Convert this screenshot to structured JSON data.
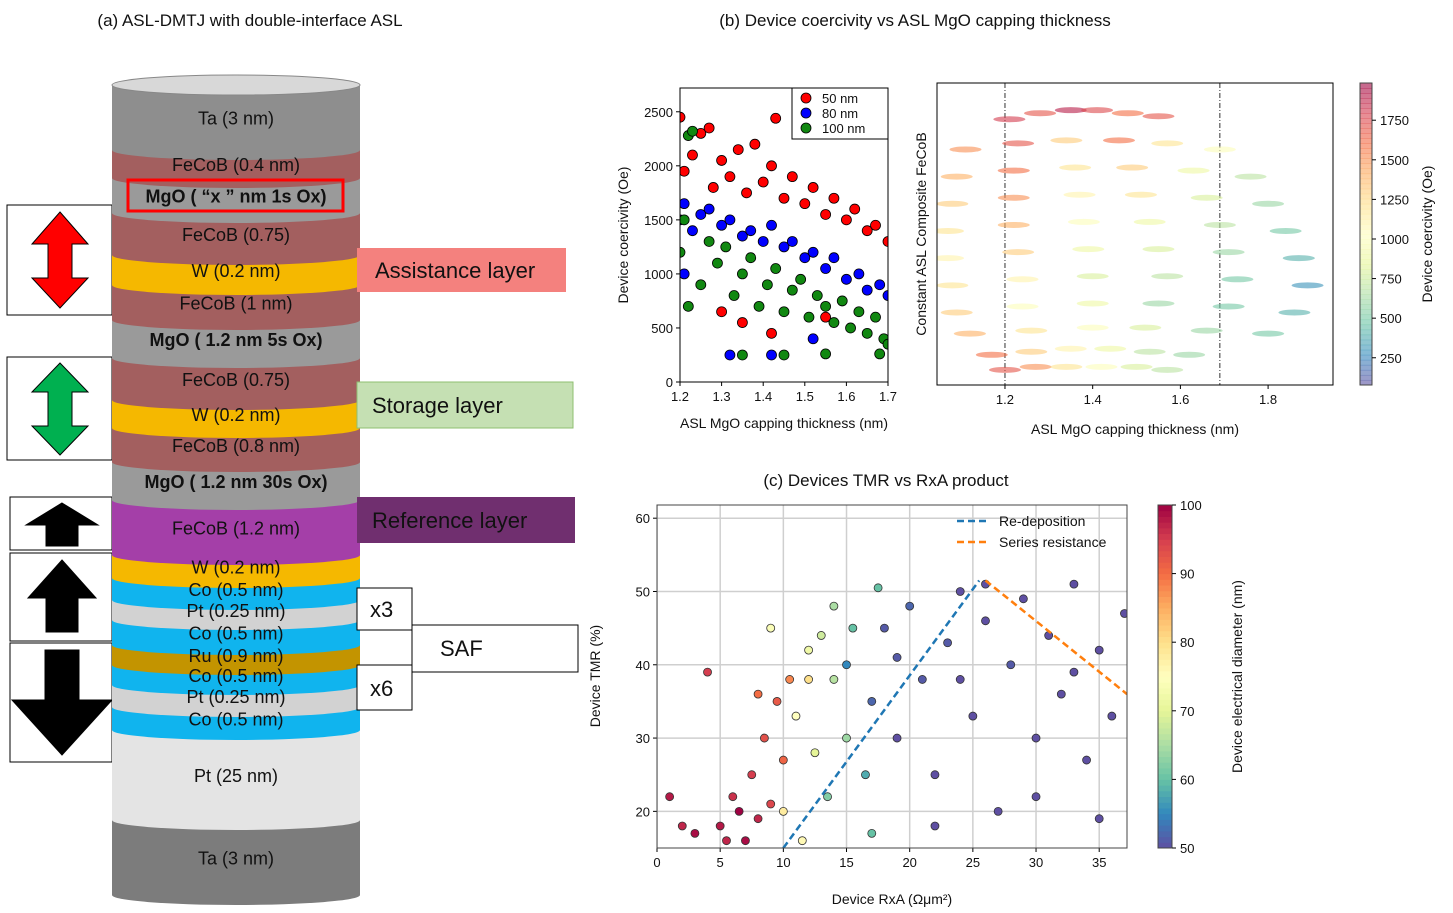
{
  "diagram": {
    "title": "(a) ASL-DMTJ with double-interface ASL",
    "layers": [
      {
        "label": "Ta (3 nm)",
        "color": "#8e8e8e"
      },
      {
        "label": "FeCoB (0.4 nm)",
        "color": "#a35f5f"
      },
      {
        "label": "MgO ( “x ” nm 1s Ox)",
        "color": "#9a9a9a",
        "bold": true
      },
      {
        "label": "FeCoB (0.75)",
        "color": "#a35f5f"
      },
      {
        "label": "W (0.2 nm)",
        "color": "#f5b800"
      },
      {
        "label": "FeCoB (1 nm)",
        "color": "#a35f5f"
      },
      {
        "label": "MgO ( 1.2 nm 5s Ox)",
        "color": "#9a9a9a",
        "bold": true
      },
      {
        "label": "FeCoB (0.75)",
        "color": "#a35f5f"
      },
      {
        "label": "W (0.2 nm)",
        "color": "#f5b800"
      },
      {
        "label": "FeCoB (0.8 nm)",
        "color": "#a35f5f"
      },
      {
        "label": "MgO ( 1.2 nm 30s Ox)",
        "color": "#9a9a9a",
        "bold": true
      },
      {
        "label": "FeCoB (1.2 nm)",
        "color": "#a43fa8"
      },
      {
        "label": "W (0.2 nm)",
        "color": "#f5b800"
      },
      {
        "label": "Co (0.5 nm)",
        "color": "#10b4ee"
      },
      {
        "label": "Pt (0.25 nm)",
        "color": "#d2d2d2"
      },
      {
        "label": "Co (0.5 nm)",
        "color": "#10b4ee"
      },
      {
        "label": "Ru (0.9 nm)",
        "color": "#c39400"
      },
      {
        "label": "Co (0.5 nm)",
        "color": "#10b4ee"
      },
      {
        "label": "Pt (0.25 nm)",
        "color": "#d2d2d2"
      },
      {
        "label": "Co (0.5 nm)",
        "color": "#10b4ee"
      },
      {
        "label": "Pt (25 nm)",
        "color": "#e4e4e4"
      },
      {
        "label": "Ta (3 nm)",
        "color": "#7c7c7c"
      }
    ],
    "callouts": {
      "assistance": "Assistance layer",
      "storage": "Storage layer",
      "reference": "Reference layer",
      "x3": "x3",
      "saf": "SAF",
      "x6": "x6"
    }
  },
  "panel_b": {
    "title": "(b) Device coercivity vs ASL MgO capping thickness"
  },
  "chart_data": [
    {
      "type": "scatter",
      "xlabel": "ASL MgO capping thickness (nm)",
      "ylabel": "Device coercivity (Oe)",
      "xlim": [
        1.2,
        1.7
      ],
      "ylim": [
        0,
        2720
      ],
      "xticks": [
        1.2,
        1.3,
        1.4,
        1.5,
        1.6,
        1.7
      ],
      "yticks": [
        0,
        500,
        1000,
        1500,
        2000,
        2500
      ],
      "legend": "upper right",
      "series": [
        {
          "name": "50 nm",
          "color": "#ff0000",
          "x": [
            1.2,
            1.21,
            1.23,
            1.25,
            1.27,
            1.28,
            1.3,
            1.32,
            1.34,
            1.36,
            1.38,
            1.4,
            1.42,
            1.43,
            1.45,
            1.47,
            1.5,
            1.52,
            1.55,
            1.57,
            1.6,
            1.62,
            1.65,
            1.67,
            1.7,
            1.3,
            1.35,
            1.42,
            1.55
          ],
          "values": [
            2450,
            1950,
            2100,
            2300,
            2350,
            1800,
            2050,
            1900,
            2150,
            1750,
            2200,
            1850,
            2000,
            2440,
            1700,
            1900,
            1650,
            1800,
            1550,
            1700,
            1500,
            1600,
            1400,
            1450,
            1300,
            650,
            550,
            450,
            600
          ]
        },
        {
          "name": "80 nm",
          "color": "#0000ff",
          "x": [
            1.2,
            1.21,
            1.23,
            1.25,
            1.27,
            1.3,
            1.32,
            1.35,
            1.37,
            1.4,
            1.42,
            1.45,
            1.47,
            1.5,
            1.52,
            1.55,
            1.57,
            1.6,
            1.63,
            1.65,
            1.68,
            1.7,
            1.32,
            1.42,
            1.52,
            1.21
          ],
          "values": [
            1500,
            1650,
            1400,
            1550,
            1600,
            1450,
            1500,
            1350,
            1400,
            1300,
            1450,
            1250,
            1300,
            1150,
            1200,
            1050,
            1150,
            950,
            1000,
            850,
            900,
            800,
            250,
            250,
            400,
            1000
          ]
        },
        {
          "name": "100 nm",
          "color": "#118811",
          "x": [
            1.2,
            1.21,
            1.22,
            1.23,
            1.25,
            1.27,
            1.29,
            1.31,
            1.33,
            1.35,
            1.37,
            1.39,
            1.41,
            1.43,
            1.45,
            1.47,
            1.49,
            1.51,
            1.53,
            1.55,
            1.57,
            1.59,
            1.61,
            1.63,
            1.65,
            1.67,
            1.69,
            1.7,
            1.35,
            1.45,
            1.55,
            1.68,
            1.22
          ],
          "values": [
            1200,
            1500,
            2280,
            2320,
            900,
            1300,
            1100,
            1250,
            800,
            1000,
            1150,
            700,
            900,
            1050,
            650,
            850,
            950,
            600,
            800,
            700,
            550,
            750,
            500,
            650,
            450,
            600,
            400,
            350,
            250,
            250,
            260,
            260,
            700
          ]
        }
      ]
    },
    {
      "type": "colorscatter",
      "xlabel": "ASL MgO capping thickness (nm)",
      "ylabel": "Constant ASL Composite FeCoB",
      "xlim": [
        1.045,
        1.948
      ],
      "ylim": [
        0,
        10
      ],
      "xticks": [
        1.2,
        1.4,
        1.6,
        1.8
      ],
      "vlines": [
        1.2,
        1.69
      ],
      "colormap": "Spectral_r",
      "alpha": 0.6,
      "clim": [
        78,
        1985
      ],
      "cticks": [
        250,
        500,
        750,
        1000,
        1250,
        1500,
        1750
      ],
      "clabel": "Device coercivity (Oe)",
      "x": [
        1.21,
        1.28,
        1.35,
        1.41,
        1.48,
        1.55,
        1.11,
        1.23,
        1.34,
        1.46,
        1.57,
        1.69,
        1.09,
        1.22,
        1.36,
        1.49,
        1.63,
        1.76,
        1.08,
        1.22,
        1.37,
        1.51,
        1.66,
        1.8,
        1.07,
        1.22,
        1.38,
        1.53,
        1.69,
        1.84,
        1.07,
        1.23,
        1.39,
        1.55,
        1.71,
        1.87,
        1.08,
        1.24,
        1.4,
        1.57,
        1.73,
        1.89,
        1.09,
        1.24,
        1.4,
        1.55,
        1.71,
        1.86,
        1.12,
        1.26,
        1.4,
        1.52,
        1.66,
        1.8,
        1.17,
        1.26,
        1.35,
        1.44,
        1.53,
        1.62,
        1.2,
        1.27,
        1.34,
        1.42,
        1.5,
        1.57
      ],
      "values": [
        8.8,
        9.0,
        9.1,
        9.1,
        9.0,
        8.9,
        7.8,
        8.0,
        8.1,
        8.1,
        8.0,
        7.8,
        6.9,
        7.1,
        7.2,
        7.2,
        7.1,
        6.9,
        6.0,
        6.2,
        6.3,
        6.3,
        6.2,
        6.0,
        5.1,
        5.3,
        5.4,
        5.4,
        5.3,
        5.1,
        4.2,
        4.4,
        4.5,
        4.5,
        4.4,
        4.2,
        3.3,
        3.5,
        3.6,
        3.6,
        3.5,
        3.3,
        2.4,
        2.6,
        2.7,
        2.7,
        2.6,
        2.4,
        1.7,
        1.8,
        1.9,
        1.9,
        1.8,
        1.7,
        1.0,
        1.1,
        1.2,
        1.2,
        1.1,
        1.0,
        0.5,
        0.6,
        0.6,
        0.6,
        0.6,
        0.5
      ],
      "c": [
        1800,
        1700,
        1900,
        1750,
        1600,
        1700,
        1500,
        1700,
        1300,
        1600,
        1200,
        1000,
        1400,
        1600,
        1200,
        1300,
        900,
        700,
        1300,
        1500,
        1100,
        1200,
        800,
        600,
        1200,
        1400,
        1000,
        900,
        700,
        500,
        1100,
        1300,
        900,
        800,
        600,
        400,
        1200,
        1100,
        800,
        700,
        500,
        300,
        1300,
        1000,
        900,
        600,
        500,
        400,
        1400,
        1200,
        1000,
        800,
        600,
        500,
        1600,
        1300,
        1100,
        900,
        700,
        600,
        1700,
        1500,
        1200,
        1000,
        800,
        700
      ]
    },
    {
      "type": "colorscatter",
      "title": "(c) Devices TMR vs RxA product",
      "xlabel": "Device RxA (Ωμm²)",
      "ylabel": "Device TMR (%)",
      "xlim": [
        0,
        37.2
      ],
      "ylim": [
        15,
        61.8
      ],
      "xticks": [
        0,
        5,
        10,
        15,
        20,
        25,
        30,
        35
      ],
      "yticks": [
        20,
        30,
        40,
        50,
        60
      ],
      "grid": true,
      "colormap": "Spectral_r",
      "alpha": 1,
      "clim": [
        50,
        100
      ],
      "cticks": [
        50,
        60,
        70,
        80,
        90,
        100
      ],
      "clabel": "Device electrical diameter (nm)",
      "legend": "upper right",
      "x": [
        5,
        6,
        7,
        7.5,
        8,
        8.5,
        9,
        9.5,
        10,
        6.5,
        5.5,
        8,
        1,
        2,
        4,
        3,
        10.5,
        10,
        11,
        12,
        12.5,
        13,
        14,
        15,
        11.5,
        13.5,
        15.5,
        16.5,
        17,
        14,
        9,
        12,
        17.5,
        15,
        17,
        18,
        19,
        20,
        21,
        22,
        23,
        24,
        25,
        26,
        27,
        28,
        29,
        30,
        31,
        32,
        33,
        34,
        35,
        36,
        37,
        22,
        26,
        30,
        35,
        24,
        19,
        33
      ],
      "values": [
        18,
        22,
        16,
        25,
        19,
        30,
        21,
        35,
        27,
        20,
        16,
        36,
        22,
        18,
        39,
        17,
        38,
        20,
        33,
        42,
        28,
        44,
        38,
        30,
        16,
        22,
        45,
        25,
        17,
        48,
        45,
        38,
        50.5,
        40,
        35,
        45,
        30,
        48,
        38,
        25,
        43,
        50,
        33,
        46,
        20,
        40,
        49,
        30,
        44,
        36,
        51,
        27,
        42,
        33,
        47,
        18,
        51,
        22,
        19,
        38,
        41,
        39
      ],
      "c": [
        98,
        96,
        99,
        95,
        97,
        93,
        94,
        92,
        91,
        100,
        97,
        90,
        98,
        97,
        95,
        99,
        88,
        78,
        75,
        72,
        70,
        68,
        66,
        64,
        76,
        62,
        60,
        58,
        60,
        65,
        74,
        80,
        60,
        55,
        52,
        51,
        50,
        52,
        51,
        50,
        51,
        50,
        50,
        50,
        50,
        51,
        50,
        50,
        50,
        50,
        50,
        50,
        50,
        50,
        50,
        50,
        50,
        50,
        50,
        50,
        51,
        50
      ],
      "lines": [
        {
          "name": "Re-deposition",
          "color": "#1f77b4",
          "x": [
            10,
            25.5
          ],
          "values": [
            15,
            51.5
          ]
        },
        {
          "name": "Series resistance",
          "color": "#ff7f0e",
          "x": [
            26,
            37.2
          ],
          "values": [
            51.5,
            36
          ]
        }
      ]
    }
  ]
}
